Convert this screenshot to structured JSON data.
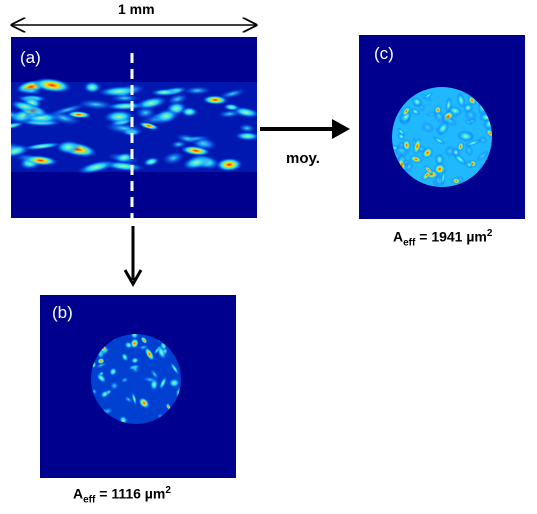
{
  "scale_bar": {
    "label": "1 mm"
  },
  "panels": {
    "a": {
      "letter": "(a)"
    },
    "b": {
      "letter": "(b)"
    },
    "c": {
      "letter": "(c)"
    }
  },
  "arrow_label": "moy.",
  "captions": {
    "b": {
      "prefix": "A",
      "sub": "eff",
      "value": " = 1116 µm",
      "sup": "2"
    },
    "c": {
      "prefix": "A",
      "sub": "eff",
      "value": " = 1941 µm",
      "sup": "2"
    }
  },
  "colors": {
    "background": "#00008f",
    "cold": "#0033cc",
    "mid": "#00c8ff",
    "warm": "#ffe000",
    "hot": "#e00000"
  }
}
